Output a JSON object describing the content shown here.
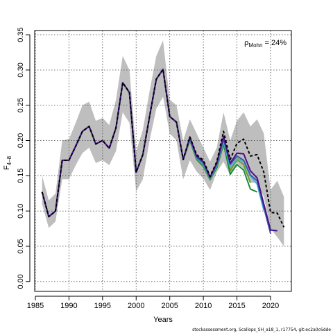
{
  "chart_data": {
    "type": "line",
    "title": "",
    "xlabel": "Years",
    "ylabel": "F",
    "ylabel_sub": "4–8",
    "xlim": [
      1984.9,
      2023.1
    ],
    "ylim": [
      -0.014,
      0.356
    ],
    "x_ticks": [
      1985,
      1990,
      1995,
      2000,
      2005,
      2010,
      2015,
      2020
    ],
    "x_tick_labels": [
      "1985",
      "1990",
      "1995",
      "2000",
      "2005",
      "2010",
      "2015",
      "2020"
    ],
    "y_ticks": [
      0,
      0.05,
      0.1,
      0.15,
      0.2,
      0.25,
      0.3,
      0.35
    ],
    "y_tick_labels": [
      "0.00",
      "0.05",
      "0.10",
      "0.15",
      "0.20",
      "0.25",
      "0.30",
      "0.35"
    ],
    "grid": true,
    "annotation": {
      "text_main": "ρ",
      "text_sub": "Mohn",
      "text_after": " = 24%"
    },
    "confidence_band": {
      "color": "#bebebe",
      "x": [
        1986,
        1987,
        1988,
        1989,
        1990,
        1991,
        1992,
        1993,
        1994,
        1995,
        1996,
        1997,
        1998,
        1999,
        2000,
        2001,
        2002,
        2003,
        2004,
        2005,
        2006,
        2007,
        2008,
        2009,
        2010,
        2011,
        2012,
        2013,
        2014,
        2015,
        2016,
        2017,
        2018,
        2019,
        2020,
        2021,
        2022
      ],
      "upper": [
        0.15,
        0.115,
        0.125,
        0.2,
        0.202,
        0.225,
        0.25,
        0.255,
        0.228,
        0.232,
        0.222,
        0.258,
        0.32,
        0.3,
        0.185,
        0.215,
        0.27,
        0.32,
        0.342,
        0.258,
        0.25,
        0.2,
        0.23,
        0.21,
        0.19,
        0.17,
        0.19,
        0.24,
        0.2,
        0.228,
        0.24,
        0.22,
        0.23,
        0.21,
        0.13,
        0.143,
        0.12
      ],
      "lower": [
        0.11,
        0.076,
        0.085,
        0.145,
        0.145,
        0.165,
        0.182,
        0.19,
        0.168,
        0.172,
        0.165,
        0.185,
        0.24,
        0.225,
        0.128,
        0.145,
        0.2,
        0.245,
        0.262,
        0.21,
        0.2,
        0.145,
        0.172,
        0.156,
        0.146,
        0.13,
        0.155,
        0.17,
        0.15,
        0.168,
        0.16,
        0.14,
        0.14,
        0.12,
        0.075,
        0.063,
        0.05
      ]
    },
    "series": [
      {
        "color": "#000000",
        "dashed": true,
        "width": 2,
        "x": [
          1986,
          1987,
          1988,
          1989,
          1990,
          1991,
          1992,
          1993,
          1994,
          1995,
          1996,
          1997,
          1998,
          1999,
          2000,
          2001,
          2002,
          2003,
          2004,
          2005,
          2006,
          2007,
          2008,
          2009,
          2010,
          2011,
          2012,
          2013,
          2014,
          2015,
          2016,
          2017,
          2018,
          2019,
          2020,
          2021,
          2022
        ],
        "values": [
          0.127,
          0.092,
          0.1,
          0.172,
          0.172,
          0.192,
          0.213,
          0.22,
          0.195,
          0.2,
          0.189,
          0.218,
          0.282,
          0.268,
          0.155,
          0.18,
          0.234,
          0.287,
          0.301,
          0.234,
          0.226,
          0.173,
          0.205,
          0.18,
          0.172,
          0.149,
          0.17,
          0.213,
          0.173,
          0.196,
          0.202,
          0.178,
          0.18,
          0.155,
          0.098,
          0.097,
          0.077
        ]
      },
      {
        "color": "#4b0f86",
        "dashed": false,
        "width": 2,
        "x": [
          1986,
          1987,
          1988,
          1989,
          1990,
          1991,
          1992,
          1993,
          1994,
          1995,
          1996,
          1997,
          1998,
          1999,
          2000,
          2001,
          2002,
          2003,
          2004,
          2005,
          2006,
          2007,
          2008,
          2009,
          2010,
          2011,
          2012,
          2013,
          2014,
          2015,
          2016,
          2017,
          2018,
          2019,
          2020,
          2021
        ],
        "values": [
          0.127,
          0.092,
          0.1,
          0.172,
          0.172,
          0.192,
          0.213,
          0.22,
          0.195,
          0.2,
          0.189,
          0.218,
          0.282,
          0.268,
          0.155,
          0.18,
          0.234,
          0.287,
          0.301,
          0.234,
          0.226,
          0.173,
          0.205,
          0.178,
          0.17,
          0.148,
          0.168,
          0.206,
          0.168,
          0.182,
          0.181,
          0.157,
          0.147,
          0.11,
          0.073,
          0.072
        ]
      },
      {
        "color": "#3b5ba8",
        "dashed": false,
        "width": 2,
        "x": [
          1986,
          1987,
          1988,
          1989,
          1990,
          1991,
          1992,
          1993,
          1994,
          1995,
          1996,
          1997,
          1998,
          1999,
          2000,
          2001,
          2002,
          2003,
          2004,
          2005,
          2006,
          2007,
          2008,
          2009,
          2010,
          2011,
          2012,
          2013,
          2014,
          2015,
          2016,
          2017,
          2018,
          2019,
          2020
        ],
        "values": [
          0.127,
          0.092,
          0.1,
          0.172,
          0.172,
          0.192,
          0.213,
          0.22,
          0.195,
          0.2,
          0.189,
          0.218,
          0.282,
          0.268,
          0.155,
          0.18,
          0.234,
          0.287,
          0.301,
          0.234,
          0.226,
          0.173,
          0.203,
          0.176,
          0.168,
          0.147,
          0.166,
          0.202,
          0.166,
          0.178,
          0.172,
          0.151,
          0.143,
          0.105,
          0.068
        ]
      },
      {
        "color": "#4ab2d8",
        "dashed": false,
        "width": 2,
        "x": [
          1986,
          1987,
          1988,
          1989,
          1990,
          1991,
          1992,
          1993,
          1994,
          1995,
          1996,
          1997,
          1998,
          1999,
          2000,
          2001,
          2002,
          2003,
          2004,
          2005,
          2006,
          2007,
          2008,
          2009,
          2010,
          2011,
          2012,
          2013,
          2014,
          2015,
          2016,
          2017,
          2018,
          2019
        ],
        "values": [
          0.127,
          0.092,
          0.1,
          0.172,
          0.172,
          0.192,
          0.213,
          0.22,
          0.195,
          0.2,
          0.189,
          0.218,
          0.282,
          0.268,
          0.155,
          0.18,
          0.234,
          0.287,
          0.301,
          0.234,
          0.226,
          0.173,
          0.202,
          0.175,
          0.166,
          0.146,
          0.164,
          0.199,
          0.162,
          0.174,
          0.171,
          0.15,
          0.138,
          0.101
        ]
      },
      {
        "color": "#1b8a3a",
        "dashed": false,
        "width": 2,
        "x": [
          1986,
          1987,
          1988,
          1989,
          1990,
          1991,
          1992,
          1993,
          1994,
          1995,
          1996,
          1997,
          1998,
          1999,
          2000,
          2001,
          2002,
          2003,
          2004,
          2005,
          2006,
          2007,
          2008,
          2009,
          2010,
          2011,
          2012,
          2013,
          2014,
          2015,
          2016,
          2017,
          2018
        ],
        "values": [
          0.127,
          0.092,
          0.1,
          0.172,
          0.172,
          0.192,
          0.213,
          0.22,
          0.195,
          0.2,
          0.189,
          0.218,
          0.282,
          0.268,
          0.155,
          0.18,
          0.234,
          0.287,
          0.301,
          0.234,
          0.226,
          0.173,
          0.201,
          0.174,
          0.164,
          0.145,
          0.162,
          0.196,
          0.152,
          0.166,
          0.158,
          0.131,
          0.127
        ]
      },
      {
        "color": "#6b9e2a",
        "dashed": false,
        "width": 2,
        "x": [
          1986,
          1987,
          1988,
          1989,
          1990,
          1991,
          1992,
          1993,
          1994,
          1995,
          1996,
          1997,
          1998,
          1999,
          2000,
          2001,
          2002,
          2003,
          2004,
          2005,
          2006,
          2007,
          2008,
          2009,
          2010,
          2011,
          2012,
          2013,
          2014,
          2015,
          2016,
          2017
        ],
        "values": [
          0.127,
          0.092,
          0.1,
          0.172,
          0.172,
          0.192,
          0.213,
          0.22,
          0.195,
          0.2,
          0.189,
          0.218,
          0.282,
          0.268,
          0.155,
          0.18,
          0.234,
          0.287,
          0.301,
          0.234,
          0.226,
          0.173,
          0.2,
          0.173,
          0.163,
          0.144,
          0.161,
          0.194,
          0.157,
          0.173,
          0.166,
          0.14
        ]
      },
      {
        "color": "#b3a71f",
        "dashed": false,
        "width": 2,
        "x": [
          1986,
          1987,
          1988,
          1989,
          1990,
          1991,
          1992,
          1993,
          1994,
          1995,
          1996,
          1997,
          1998,
          1999,
          2000,
          2001,
          2002,
          2003,
          2004,
          2005,
          2006,
          2007,
          2008,
          2009,
          2010,
          2011,
          2012,
          2013,
          2014,
          2015,
          2016
        ],
        "values": [
          0.127,
          0.092,
          0.1,
          0.172,
          0.172,
          0.192,
          0.213,
          0.22,
          0.195,
          0.2,
          0.189,
          0.218,
          0.282,
          0.268,
          0.155,
          0.18,
          0.234,
          0.287,
          0.301,
          0.234,
          0.226,
          0.173,
          0.2,
          0.173,
          0.163,
          0.144,
          0.161,
          0.195,
          0.158,
          0.175,
          0.17
        ]
      }
    ]
  },
  "footer_text": "stockassessment.org, Scallops_SH_a18_1, r17754, git:ec2a0c6dde"
}
